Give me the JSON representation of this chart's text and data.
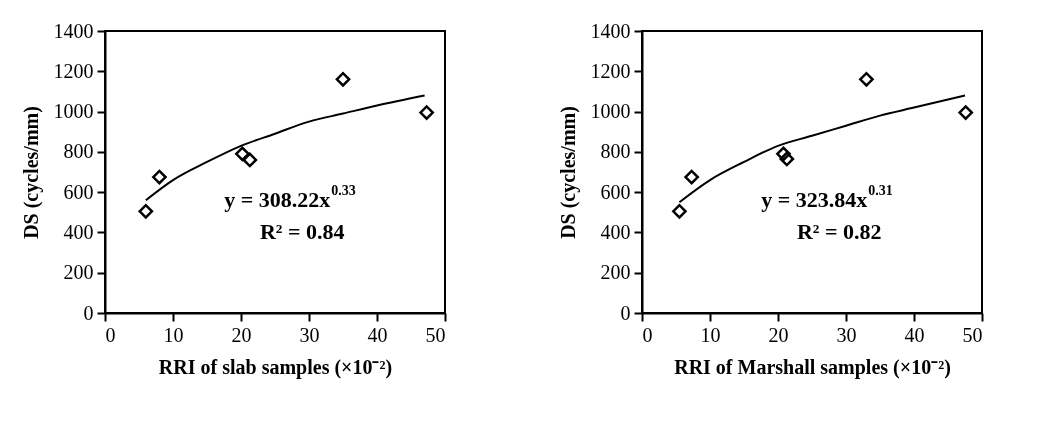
{
  "chart_data": [
    {
      "type": "scatter",
      "xlabel": "RRI of slab samples (×10⁻²)",
      "ylabel": "DS (cycles/mm)",
      "xlim": [
        0,
        50
      ],
      "xticks": [
        0,
        10,
        20,
        30,
        40,
        50
      ],
      "ylim": [
        0,
        1400
      ],
      "yticks": [
        0,
        200,
        400,
        600,
        800,
        1000,
        1200,
        1400
      ],
      "line_style": "solid",
      "annotations": [
        "y = 308.22x$^{0.33}$",
        "R² = 0.84"
      ],
      "series": [
        {
          "marker": "diamond",
          "color": "#000000",
          "x": [
            6,
            8,
            20.2,
            21.3,
            35,
            47.3
          ],
          "values": [
            505,
            675,
            790,
            760,
            1160,
            995
          ]
        },
        {
          "type": "line",
          "color": "#000000",
          "x": [
            6,
            10,
            15,
            20,
            25,
            30,
            35,
            40,
            47
          ],
          "values": [
            560,
            660,
            750,
            830,
            890,
            950,
            990,
            1030,
            1080
          ]
        }
      ]
    },
    {
      "type": "scatter",
      "xlabel": "RRI of Marshall samples (×10⁻²)",
      "ylabel": "DS (cycles/mm)",
      "xlim": [
        0,
        50
      ],
      "xticks": [
        0,
        10,
        20,
        30,
        40,
        50
      ],
      "ylim": [
        0,
        1400
      ],
      "yticks": [
        0,
        200,
        400,
        600,
        800,
        1000,
        1200,
        1400
      ],
      "line_style": "solid",
      "annotations": [
        "y = 323.84x$^{0.31}$",
        "R² = 0.82"
      ],
      "series": [
        {
          "marker": "diamond",
          "color": "#000000",
          "x": [
            5.5,
            7.3,
            20.8,
            21.3,
            33,
            47.6
          ],
          "values": [
            505,
            675,
            790,
            765,
            1160,
            995
          ]
        },
        {
          "type": "line",
          "color": "#000000",
          "x": [
            5.5,
            10,
            15,
            20,
            25,
            30,
            35,
            40,
            47.5
          ],
          "values": [
            550,
            660,
            750,
            830,
            880,
            930,
            980,
            1020,
            1080
          ]
        }
      ]
    }
  ]
}
